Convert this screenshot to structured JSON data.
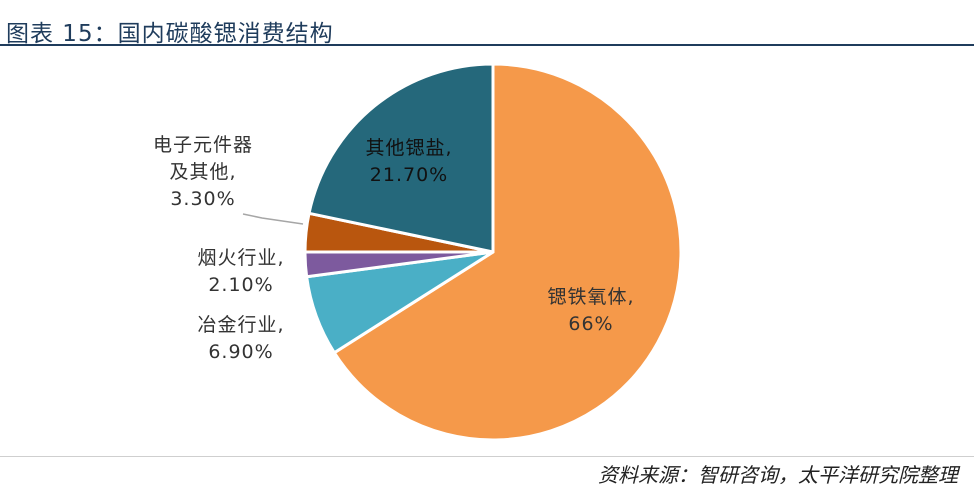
{
  "header": {
    "title": "图表 15：国内碳酸锶消费结构"
  },
  "source": "资料来源：智研咨询，太平洋研究院整理",
  "colors": {
    "title": "#1f3c5c",
    "slice_ferrite": "#f5994a",
    "slice_metallurgy": "#4aafc6",
    "slice_fireworks": "#7d5a9e",
    "slice_electronics": "#b9560e",
    "slice_other_salts": "#25687b",
    "leader": "#a6a6a6"
  },
  "chart_data": {
    "type": "pie",
    "title": "",
    "slices": [
      {
        "key": "ferrite",
        "name": "锶铁氧体",
        "value": 66,
        "label_lines": [
          "锶铁氧体,",
          "66%"
        ]
      },
      {
        "key": "metallurgy",
        "name": "冶金行业",
        "value": 6.9,
        "label_lines": [
          "冶金行业,",
          "6.90%"
        ]
      },
      {
        "key": "fireworks",
        "name": "烟火行业",
        "value": 2.1,
        "label_lines": [
          "烟火行业,",
          "2.10%"
        ]
      },
      {
        "key": "electronics",
        "name": "电子元件器及其他",
        "value": 3.3,
        "label_lines": [
          "电子元件器",
          "及其他,",
          "3.30%"
        ]
      },
      {
        "key": "other_salts",
        "name": "其他锶盐",
        "value": 21.7,
        "label_lines": [
          "其他锶盐,",
          "21.70%"
        ]
      }
    ],
    "start": "12 o'clock",
    "direction": "clockwise",
    "legend": "none"
  }
}
